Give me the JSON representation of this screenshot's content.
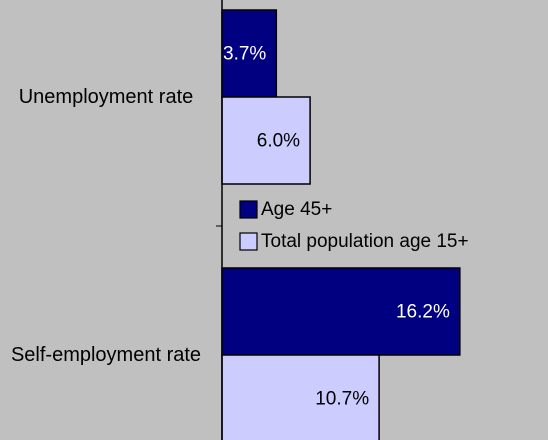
{
  "chart_data": {
    "type": "barh",
    "categories": [
      "Unemployment rate",
      "Self-employment rate"
    ],
    "series": [
      {
        "name": "Age 45+",
        "color": "#000080",
        "label_color": "#ffffff",
        "values": [
          3.7,
          16.2
        ],
        "value_labels": [
          "3.7%",
          "16.2%"
        ]
      },
      {
        "name": "Total population age 15+",
        "color": "#ccccff",
        "label_color": "#000000",
        "values": [
          6.0,
          10.7
        ],
        "value_labels": [
          "6.0%",
          "10.7%"
        ]
      }
    ],
    "xlim": [
      0,
      22
    ]
  }
}
